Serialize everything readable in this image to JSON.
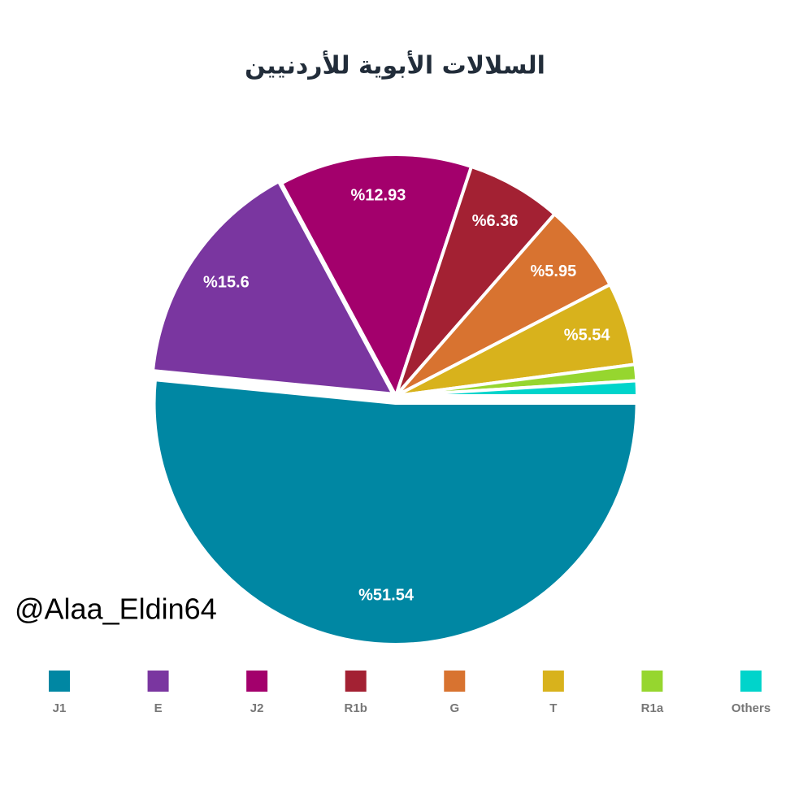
{
  "chart_data": {
    "type": "pie",
    "title": "السلالات الأبوية للأردنيين",
    "watermark": "@Alaa_Eldin64",
    "categories": [
      "J1",
      "E",
      "J2",
      "R1b",
      "G",
      "T",
      "R1a",
      "Others"
    ],
    "values": [
      51.54,
      15.6,
      12.93,
      6.36,
      5.95,
      5.54,
      1.08,
      1.0
    ],
    "value_labels": [
      "%51.54",
      "%15.6",
      "%12.93",
      "%6.36",
      "%5.95",
      "%5.54",
      null,
      null
    ],
    "colors": [
      "#0087a3",
      "#7a36a0",
      "#a3006c",
      "#a32133",
      "#d87330",
      "#d8b21c",
      "#96d62f",
      "#00d4cb"
    ],
    "legend": "bottom"
  }
}
